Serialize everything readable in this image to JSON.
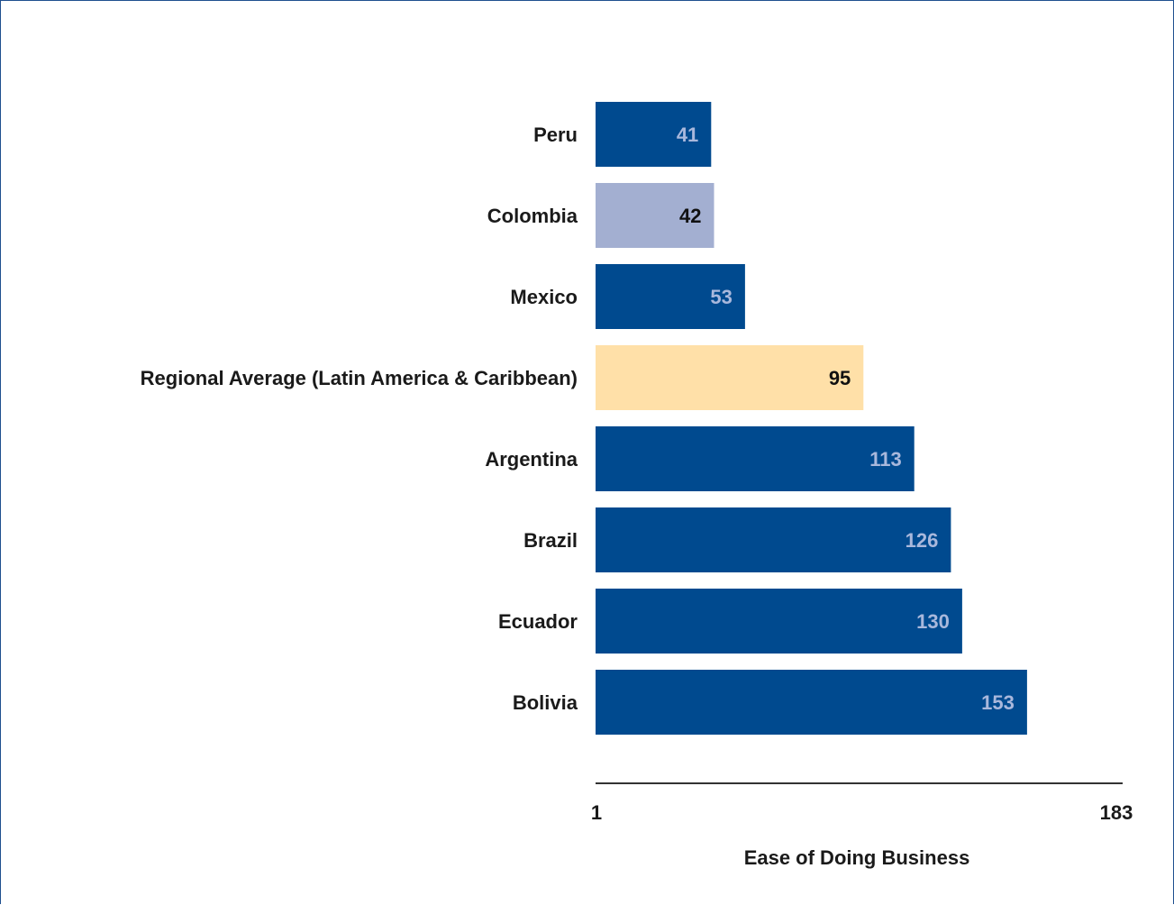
{
  "chart_data": {
    "type": "bar",
    "orientation": "horizontal",
    "title": "",
    "xlabel": "Ease of Doing Business",
    "ylabel": "",
    "xlim": [
      1,
      183
    ],
    "x_ticks": [
      "1",
      "183"
    ],
    "grid": false,
    "categories": [
      "Peru",
      "Colombia",
      "Mexico",
      "Regional Average (Latin America & Caribbean)",
      "Argentina",
      "Brazil",
      "Ecuador",
      "Bolivia"
    ],
    "values": [
      41,
      42,
      53,
      95,
      113,
      126,
      130,
      153
    ],
    "value_labels": [
      "41",
      "42",
      "53",
      "95",
      "113",
      "126",
      "130",
      "153"
    ],
    "bar_colors": [
      "#004a8f",
      "#a3afd1",
      "#004a8f",
      "#ffe0a8",
      "#004a8f",
      "#004a8f",
      "#004a8f",
      "#004a8f"
    ],
    "label_colors": [
      "#a9b8dc",
      "#111111",
      "#a9b8dc",
      "#111111",
      "#a9b8dc",
      "#a9b8dc",
      "#a9b8dc",
      "#a9b8dc"
    ]
  }
}
